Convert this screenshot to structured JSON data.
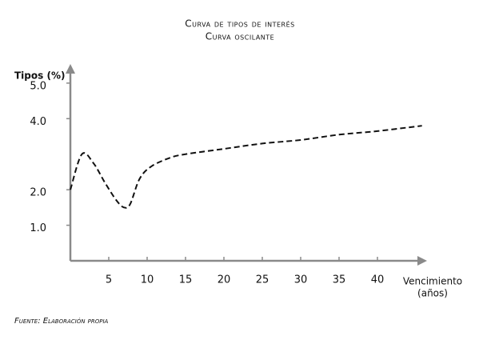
{
  "chart_data": {
    "type": "line",
    "title": "Curva de tipos de interés",
    "subtitle": "Curva oscilante",
    "y_label": "Tipos (%)",
    "x_label": [
      "Vencimiento",
      "(años)"
    ],
    "source": "Fuente: Elaboración propia",
    "x": [
      0,
      1.5,
      3,
      4.5,
      6,
      7,
      7.8,
      9,
      10.5,
      13,
      15,
      20,
      25,
      30,
      35,
      40,
      45.8
    ],
    "series": [
      {
        "name": "Curva oscilante",
        "color": "#111111",
        "values": [
          2.0,
          3.0,
          2.75,
          2.2,
          1.7,
          1.5,
          1.6,
          2.3,
          2.65,
          2.9,
          3.0,
          3.15,
          3.3,
          3.4,
          3.55,
          3.65,
          3.8
        ]
      }
    ],
    "xlim": [
      0,
      46
    ],
    "ylim": [
      0,
      5.2
    ],
    "xticks": [
      5,
      10,
      15,
      20,
      25,
      30,
      35,
      40
    ],
    "yticks": [
      {
        "value": 1,
        "label": "1.0"
      },
      {
        "value": 2,
        "label": "2.0"
      },
      {
        "value": 4,
        "label": "4.0"
      },
      {
        "value": 5,
        "label": "5.0"
      }
    ],
    "line_style": "dashed"
  }
}
